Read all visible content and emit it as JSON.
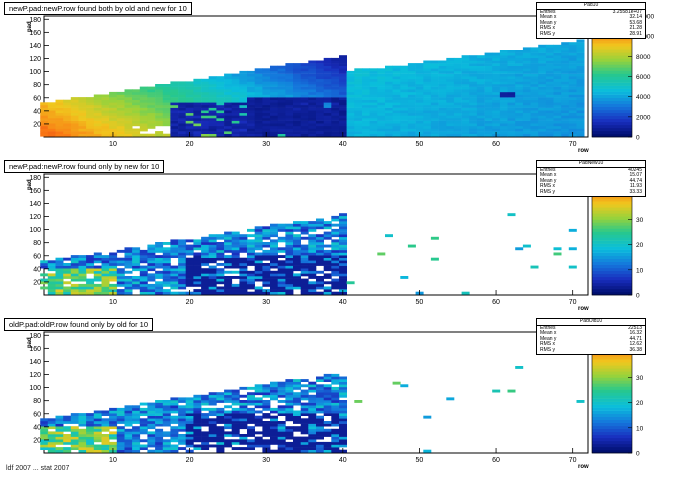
{
  "chart_data": [
    {
      "type": "heatmap",
      "title": "newP.pad:newP.row found both by old and new for 10",
      "xlabel": "row",
      "ylabel": "pad",
      "xlim": [
        1,
        72
      ],
      "ylim": [
        0,
        185
      ],
      "xticks": [
        "10",
        "20",
        "30",
        "40",
        "50",
        "60",
        "70"
      ],
      "yticks": [
        "20",
        "40",
        "60",
        "80",
        "100",
        "120",
        "140",
        "160",
        "180"
      ],
      "stats": {
        "name": "Pad10",
        "entries": "3.25581e+07",
        "mean_x": "32.14",
        "mean_y": "53.68",
        "rms_x": "21.28",
        "rms_y": "28.91"
      },
      "zticks": [
        "0",
        "2000",
        "4000",
        "6000",
        "8000",
        "10000",
        "12000"
      ],
      "zmax": 12000,
      "pattern": "full"
    },
    {
      "type": "heatmap",
      "title": "newP.pad:newP.row found only by new for 10",
      "xlabel": "row",
      "ylabel": "pad",
      "xlim": [
        1,
        72
      ],
      "ylim": [
        0,
        185
      ],
      "xticks": [
        "10",
        "20",
        "30",
        "40",
        "50",
        "60",
        "70"
      ],
      "yticks": [
        "20",
        "40",
        "60",
        "80",
        "100",
        "120",
        "140",
        "160",
        "180"
      ],
      "stats": {
        "name": "PadNew10",
        "entries": "40245",
        "mean_x": "15.07",
        "mean_y": "44.74",
        "rms_x": "11.93",
        "rms_y": "33.33"
      },
      "zticks": [
        "0",
        "10",
        "20",
        "30",
        "40"
      ],
      "zmax": 48,
      "pattern": "new"
    },
    {
      "type": "heatmap",
      "title": "oldP.pad:oldP.row found only by old for 10",
      "xlabel": "row",
      "ylabel": "pad",
      "xlim": [
        1,
        72
      ],
      "ylim": [
        0,
        185
      ],
      "xticks": [
        "10",
        "20",
        "30",
        "40",
        "50",
        "60",
        "70"
      ],
      "yticks": [
        "20",
        "40",
        "60",
        "80",
        "100",
        "120",
        "140",
        "160",
        "180"
      ],
      "stats": {
        "name": "PadOld10",
        "entries": "22513",
        "mean_x": "16.32",
        "mean_y": "44.71",
        "rms_x": "12.62",
        "rms_y": "36.38"
      },
      "zticks": [
        "0",
        "10",
        "20",
        "30",
        "40"
      ],
      "zmax": 48,
      "pattern": "old"
    }
  ],
  "stat_labels": {
    "entries": "Entries",
    "mean_x": "Mean x",
    "mean_y": "Mean y",
    "rms_x": "RMS x",
    "rms_y": "RMS y"
  },
  "footer": "ldf 2007 ... stat 2007"
}
